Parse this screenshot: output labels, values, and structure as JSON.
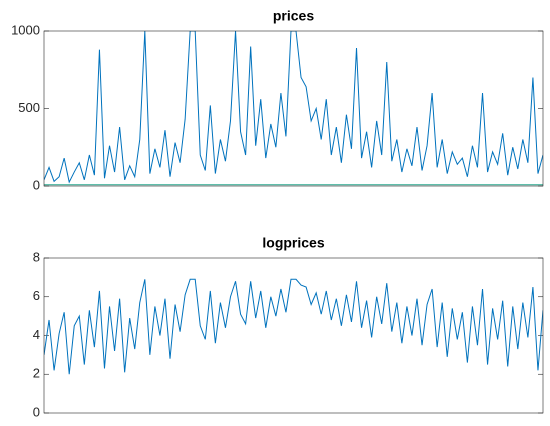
{
  "chart_data": [
    {
      "type": "line",
      "title": "prices",
      "x": [
        1,
        2,
        3,
        4,
        5,
        6,
        7,
        8,
        9,
        10,
        11,
        12,
        13,
        14,
        15,
        16,
        17,
        18,
        19,
        20,
        21,
        22,
        23,
        24,
        25,
        26,
        27,
        28,
        29,
        30,
        31,
        32,
        33,
        34,
        35,
        36,
        37,
        38,
        39,
        40,
        41,
        42,
        43,
        44,
        45,
        46,
        47,
        48,
        49,
        50,
        51,
        52,
        53,
        54,
        55,
        56,
        57,
        58,
        59,
        60,
        61,
        62,
        63,
        64,
        65,
        66,
        67,
        68,
        69,
        70,
        71,
        72,
        73,
        74,
        75,
        76,
        77,
        78,
        79,
        80,
        81,
        82,
        83,
        84,
        85,
        86,
        87,
        88,
        89,
        90,
        91,
        92,
        93,
        94,
        95,
        96,
        97,
        98,
        99,
        100
      ],
      "series": [
        {
          "color": "#0072bd",
          "values": [
            40,
            120,
            30,
            60,
            180,
            25,
            90,
            150,
            40,
            200,
            70,
            880,
            50,
            260,
            90,
            380,
            40,
            130,
            60,
            300,
            1000,
            80,
            240,
            120,
            360,
            60,
            280,
            150,
            430,
            1000,
            1000,
            200,
            100,
            520,
            80,
            300,
            160,
            420,
            1000,
            350,
            200,
            900,
            260,
            560,
            180,
            400,
            250,
            600,
            320,
            1000,
            1000,
            700,
            640,
            420,
            500,
            300,
            560,
            200,
            380,
            150,
            460,
            240,
            890,
            180,
            350,
            120,
            420,
            200,
            800,
            160,
            300,
            90,
            240,
            130,
            380,
            100,
            260,
            600,
            120,
            300,
            80,
            220,
            140,
            180,
            60,
            260,
            120,
            600,
            90,
            220,
            140,
            340,
            70,
            250,
            110,
            300,
            150,
            700,
            80,
            200
          ]
        },
        {
          "color": "#2ca88f",
          "x": [
            1,
            100
          ],
          "values": [
            8,
            8
          ]
        }
      ],
      "xlim": [
        1,
        100
      ],
      "ylim": [
        0,
        1000
      ],
      "yticks": [
        0,
        500,
        1000
      ]
    },
    {
      "type": "line",
      "title": "logprices",
      "x": [
        1,
        2,
        3,
        4,
        5,
        6,
        7,
        8,
        9,
        10,
        11,
        12,
        13,
        14,
        15,
        16,
        17,
        18,
        19,
        20,
        21,
        22,
        23,
        24,
        25,
        26,
        27,
        28,
        29,
        30,
        31,
        32,
        33,
        34,
        35,
        36,
        37,
        38,
        39,
        40,
        41,
        42,
        43,
        44,
        45,
        46,
        47,
        48,
        49,
        50,
        51,
        52,
        53,
        54,
        55,
        56,
        57,
        58,
        59,
        60,
        61,
        62,
        63,
        64,
        65,
        66,
        67,
        68,
        69,
        70,
        71,
        72,
        73,
        74,
        75,
        76,
        77,
        78,
        79,
        80,
        81,
        82,
        83,
        84,
        85,
        86,
        87,
        88,
        89,
        90,
        91,
        92,
        93,
        94,
        95,
        96,
        97,
        98,
        99,
        100
      ],
      "series": [
        {
          "color": "#0072bd",
          "values": [
            3.0,
            4.8,
            2.2,
            4.1,
            5.2,
            2.0,
            4.5,
            5.0,
            2.5,
            5.3,
            3.4,
            6.3,
            2.3,
            5.5,
            3.2,
            5.9,
            2.1,
            4.9,
            3.3,
            5.7,
            6.9,
            3.0,
            5.5,
            4.0,
            5.9,
            2.8,
            5.6,
            4.2,
            6.1,
            6.9,
            6.9,
            4.5,
            3.8,
            6.3,
            3.6,
            5.7,
            4.4,
            6.0,
            6.8,
            5.1,
            4.6,
            6.8,
            4.9,
            6.3,
            4.4,
            6.0,
            5.0,
            6.4,
            5.2,
            6.9,
            6.9,
            6.6,
            6.5,
            5.6,
            6.2,
            5.1,
            6.3,
            4.8,
            5.9,
            4.5,
            6.1,
            4.7,
            6.8,
            4.4,
            5.8,
            3.9,
            6.0,
            4.6,
            6.7,
            4.2,
            5.7,
            3.6,
            5.5,
            4.0,
            5.9,
            3.5,
            5.6,
            6.4,
            3.4,
            5.7,
            2.9,
            5.4,
            3.8,
            5.2,
            2.6,
            5.5,
            3.5,
            6.4,
            2.5,
            5.4,
            3.8,
            5.8,
            2.4,
            5.5,
            3.3,
            5.7,
            3.9,
            6.5,
            2.2,
            5.3
          ]
        }
      ],
      "xlim": [
        1,
        100
      ],
      "ylim": [
        0,
        8
      ],
      "yticks": [
        0,
        2,
        4,
        6,
        8
      ]
    }
  ]
}
